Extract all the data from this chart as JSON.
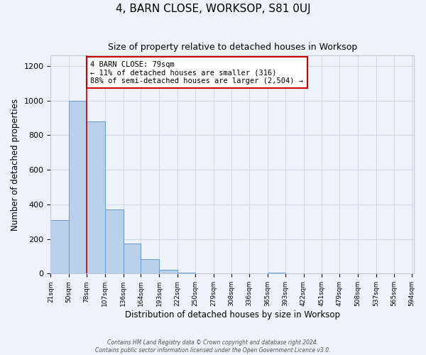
{
  "title": "4, BARN CLOSE, WORKSOP, S81 0UJ",
  "subtitle": "Size of property relative to detached houses in Worksop",
  "xlabel": "Distribution of detached houses by size in Worksop",
  "ylabel": "Number of detached properties",
  "footer_line1": "Contains HM Land Registry data © Crown copyright and database right 2024.",
  "footer_line2": "Contains public sector information licensed under the Open Government Licence v3.0.",
  "bin_edges": [
    21,
    50,
    78,
    107,
    136,
    164,
    193,
    222,
    250,
    279,
    308,
    336,
    365,
    393,
    422,
    451,
    479,
    508,
    537,
    565,
    594
  ],
  "bin_counts": [
    310,
    1000,
    880,
    370,
    175,
    85,
    22,
    5,
    0,
    0,
    0,
    0,
    5,
    0,
    0,
    0,
    0,
    0,
    0,
    0
  ],
  "bar_color": "#b8d0ea",
  "bar_edge_color": "#6699cc",
  "property_line_x": 78,
  "property_line_color": "#cc0000",
  "annotation_line1": "4 BARN CLOSE: 79sqm",
  "annotation_line2": "← 11% of detached houses are smaller (316)",
  "annotation_line3": "88% of semi-detached houses are larger (2,504) →",
  "annotation_box_color": "#cc0000",
  "ylim": [
    0,
    1260
  ],
  "yticks": [
    0,
    200,
    400,
    600,
    800,
    1000,
    1200
  ],
  "grid_color": "#d0d8e8",
  "background_color": "#eef2fa",
  "tick_labels": [
    "21sqm",
    "50sqm",
    "78sqm",
    "107sqm",
    "136sqm",
    "164sqm",
    "193sqm",
    "222sqm",
    "250sqm",
    "279sqm",
    "308sqm",
    "336sqm",
    "365sqm",
    "393sqm",
    "422sqm",
    "451sqm",
    "479sqm",
    "508sqm",
    "537sqm",
    "565sqm",
    "594sqm"
  ]
}
